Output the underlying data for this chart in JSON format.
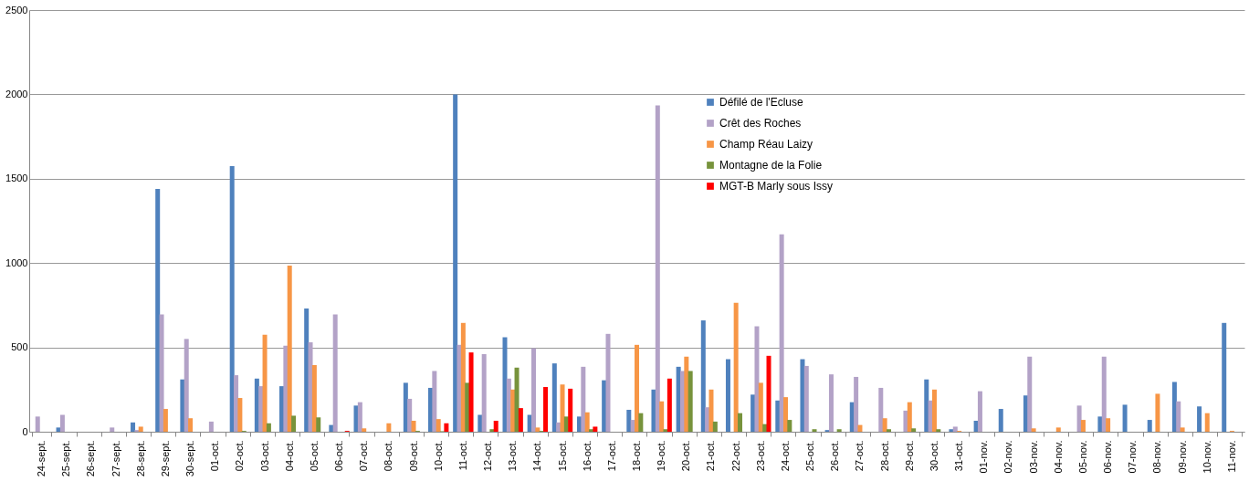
{
  "chart_data": {
    "type": "bar",
    "categories": [
      "24-sept.",
      "25-sept.",
      "26-sept.",
      "27-sept.",
      "28-sept.",
      "29-sept.",
      "30-sept.",
      "01-oct.",
      "02-oct.",
      "03-oct.",
      "04-oct.",
      "05-oct.",
      "06-oct.",
      "07-oct.",
      "08-oct.",
      "09-oct.",
      "10-oct.",
      "11-oct.",
      "12-oct.",
      "13-oct.",
      "14-oct.",
      "15-oct.",
      "16-oct.",
      "17-oct.",
      "18-oct.",
      "19-oct.",
      "20-oct.",
      "21-oct.",
      "22-oct.",
      "23-oct.",
      "24-oct.",
      "25-oct.",
      "26-oct.",
      "27-oct.",
      "28-oct.",
      "29-oct.",
      "30-oct.",
      "31-oct.",
      "01-nov.",
      "02-nov.",
      "03-nov.",
      "04-nov.",
      "05-nov.",
      "06-nov.",
      "07-nov.",
      "08-nov.",
      "09-nov.",
      "10-nov.",
      "11-nov."
    ],
    "series": [
      {
        "name": "Défilé de l'Ecluse",
        "color": "#4f81bd",
        "values": [
          null,
          25,
          0,
          null,
          55,
          1440,
          310,
          null,
          1575,
          315,
          270,
          730,
          40,
          155,
          0,
          290,
          260,
          2000,
          100,
          560,
          100,
          405,
          90,
          305,
          130,
          250,
          385,
          660,
          430,
          220,
          185,
          430,
          10,
          175,
          0,
          0,
          310,
          15,
          65,
          135,
          215,
          0,
          null,
          90,
          160,
          70,
          295,
          150,
          645
        ]
      },
      {
        "name": "Crêt des Roches",
        "color": "#b3a2c7",
        "values": [
          90,
          100,
          0,
          25,
          10,
          695,
          550,
          60,
          335,
          270,
          510,
          530,
          695,
          175,
          0,
          195,
          360,
          515,
          460,
          315,
          495,
          55,
          385,
          580,
          70,
          1935,
          360,
          145,
          0,
          625,
          1170,
          390,
          340,
          325,
          260,
          125,
          185,
          30,
          240,
          0,
          445,
          null,
          155,
          445,
          0,
          0,
          180,
          0,
          0
        ]
      },
      {
        "name": "Champ Réau Laizy",
        "color": "#f79646",
        "values": [
          0,
          0,
          0,
          0,
          30,
          135,
          80,
          0,
          200,
          575,
          985,
          395,
          0,
          20,
          50,
          65,
          75,
          645,
          0,
          250,
          25,
          280,
          115,
          0,
          515,
          180,
          445,
          250,
          765,
          290,
          205,
          0,
          0,
          40,
          80,
          175,
          250,
          5,
          0,
          0,
          20,
          25,
          70,
          80,
          0,
          225,
          25,
          110,
          5
        ]
      },
      {
        "name": "Montagne de la Folie",
        "color": "#77933c",
        "values": [
          0,
          0,
          0,
          0,
          0,
          0,
          0,
          0,
          5,
          50,
          95,
          85,
          0,
          0,
          0,
          5,
          3,
          290,
          15,
          380,
          5,
          90,
          15,
          0,
          110,
          15,
          360,
          60,
          110,
          45,
          70,
          15,
          15,
          0,
          15,
          20,
          15,
          0,
          0,
          0,
          0,
          0,
          0,
          0,
          0,
          0,
          0,
          0,
          0
        ]
      },
      {
        "name": "MGT-B Marly sous Issy",
        "color": "#ff0000",
        "values": [
          0,
          0,
          0,
          0,
          0,
          0,
          0,
          0,
          0,
          0,
          0,
          0,
          5,
          0,
          0,
          0,
          50,
          470,
          65,
          140,
          265,
          255,
          30,
          0,
          0,
          315,
          0,
          0,
          0,
          450,
          0,
          0,
          0,
          0,
          0,
          0,
          0,
          0,
          0,
          0,
          0,
          0,
          0,
          0,
          0,
          0,
          0,
          0,
          0
        ]
      }
    ],
    "ylim": [
      0,
      2500
    ],
    "yticks": [
      0,
      500,
      1000,
      1500,
      2000,
      2500
    ],
    "grid": "y",
    "legend": "top"
  }
}
